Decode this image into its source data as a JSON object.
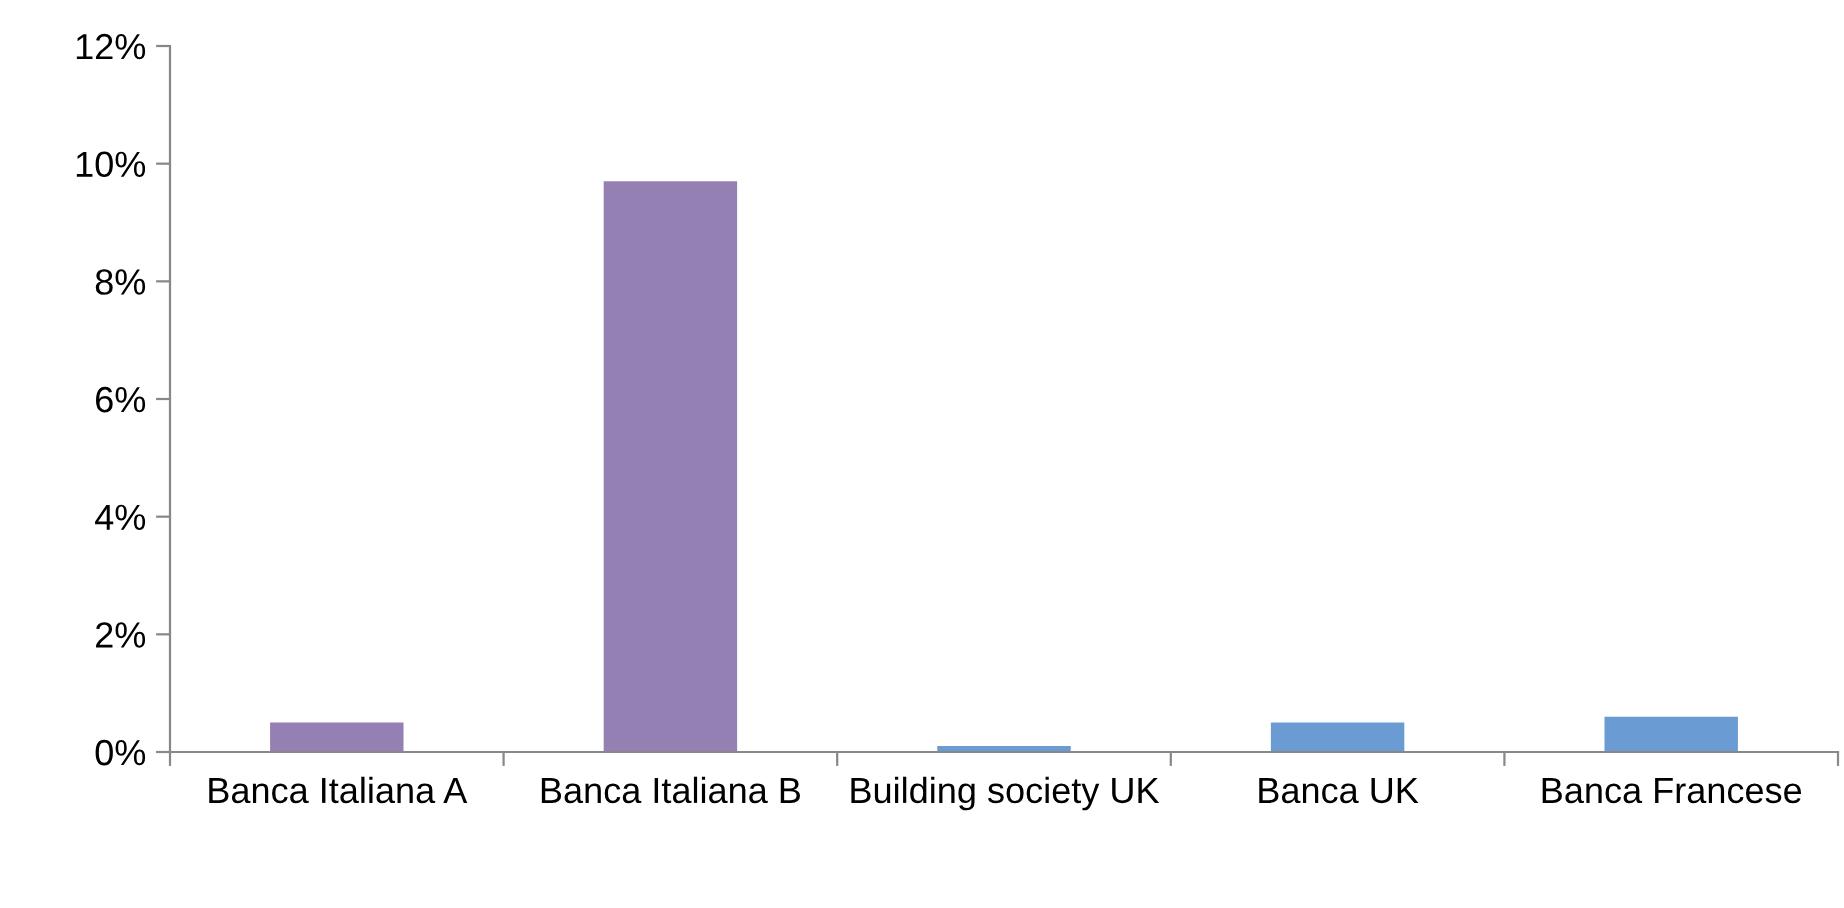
{
  "chart_data": {
    "type": "bar",
    "categories": [
      "Banca Italiana A",
      "Banca Italiana B",
      "Building society UK",
      "Banca UK",
      "Banca Francese"
    ],
    "values": [
      0.5,
      9.7,
      0.1,
      0.5,
      0.6
    ],
    "colors": [
      "#9480b3",
      "#9480b3",
      "#6a9bd3",
      "#6a9bd3",
      "#6a9bd3"
    ],
    "ylim": [
      0,
      12
    ],
    "yticks": [
      {
        "value": 0,
        "label": "0%"
      },
      {
        "value": 2,
        "label": "2%"
      },
      {
        "value": 4,
        "label": "4%"
      },
      {
        "value": 6,
        "label": "6%"
      },
      {
        "value": 8,
        "label": "8%"
      },
      {
        "value": 10,
        "label": "10%"
      },
      {
        "value": 12,
        "label": "12%"
      }
    ],
    "grid": false
  }
}
